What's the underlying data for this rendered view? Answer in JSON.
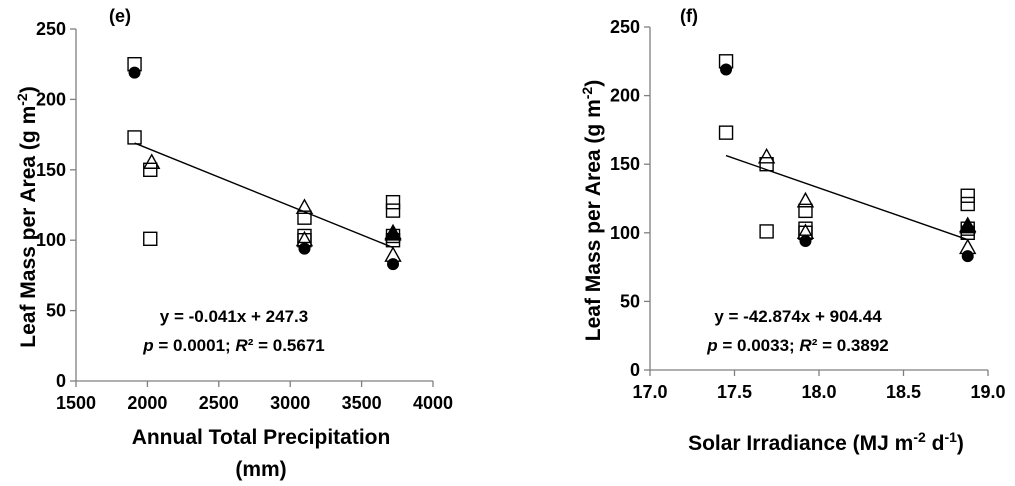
{
  "chart_data": [
    {
      "type": "scatter",
      "panel_label": "(e)",
      "xlabel_line1": "Annual Total Precipitation",
      "xlabel_line2": "(mm)",
      "ylabel": "Leaf Mass per Area (g m⁻²)",
      "xlim": [
        1500,
        4000
      ],
      "ylim": [
        0,
        250
      ],
      "x_ticks": [
        "1500",
        "2000",
        "2500",
        "3000",
        "3500",
        "4000"
      ],
      "y_ticks": [
        "0",
        "50",
        "100",
        "150",
        "200",
        "250"
      ],
      "equation": "y = -0.041x + 247.3",
      "stats": "p = 0.0001; R² = 0.5671",
      "trendline": {
        "slope": -0.041,
        "intercept": 247.3,
        "x_range": [
          1910,
          3720
        ]
      },
      "series": [
        {
          "marker": "circle-filled",
          "points": [
            [
              1910,
              219
            ],
            [
              3100,
              94
            ],
            [
              3720,
              83
            ]
          ]
        },
        {
          "marker": "square-open",
          "points": [
            [
              1910,
              225
            ],
            [
              1910,
              173
            ],
            [
              2020,
              150
            ],
            [
              2020,
              101
            ],
            [
              3100,
              116
            ],
            [
              3100,
              103
            ],
            [
              3100,
              100
            ],
            [
              3720,
              127
            ],
            [
              3720,
              121
            ],
            [
              3720,
              103
            ],
            [
              3720,
              100
            ]
          ]
        },
        {
          "marker": "triangle-open",
          "points": [
            [
              2030,
              155
            ],
            [
              3100,
              123
            ],
            [
              3100,
              100
            ],
            [
              3720,
              105
            ],
            [
              3720,
              89
            ]
          ]
        },
        {
          "marker": "triangle-filled",
          "points": [
            [
              3720,
              104
            ]
          ]
        }
      ]
    },
    {
      "type": "scatter",
      "panel_label": "(f)",
      "xlabel": "Solar Irradiance (MJ m⁻² d⁻¹)",
      "ylabel": "Leaf Mass per Area (g m⁻²)",
      "xlim": [
        17.0,
        19.0
      ],
      "ylim": [
        0,
        250
      ],
      "x_ticks": [
        "17.0",
        "17.5",
        "18.0",
        "18.5",
        "19.0"
      ],
      "y_ticks": [
        "0",
        "50",
        "100",
        "150",
        "200",
        "250"
      ],
      "equation": "y = -42.874x + 904.44",
      "stats": "p = 0.0033; R² = 0.3892",
      "trendline": {
        "slope": -42.874,
        "intercept": 904.44,
        "x_range": [
          17.45,
          18.88
        ]
      },
      "series": [
        {
          "marker": "circle-filled",
          "points": [
            [
              17.45,
              219
            ],
            [
              17.92,
              94
            ],
            [
              18.88,
              83
            ]
          ]
        },
        {
          "marker": "square-open",
          "points": [
            [
              17.45,
              225
            ],
            [
              17.45,
              173
            ],
            [
              17.69,
              150
            ],
            [
              17.69,
              101
            ],
            [
              17.92,
              116
            ],
            [
              17.92,
              103
            ],
            [
              17.92,
              100
            ],
            [
              18.88,
              127
            ],
            [
              18.88,
              121
            ],
            [
              18.88,
              103
            ],
            [
              18.88,
              100
            ]
          ]
        },
        {
          "marker": "triangle-open",
          "points": [
            [
              17.69,
              155
            ],
            [
              17.92,
              123
            ],
            [
              17.92,
              100
            ],
            [
              18.88,
              105
            ],
            [
              18.88,
              89
            ]
          ]
        },
        {
          "marker": "triangle-filled",
          "points": [
            [
              18.88,
              104
            ]
          ]
        }
      ]
    }
  ]
}
